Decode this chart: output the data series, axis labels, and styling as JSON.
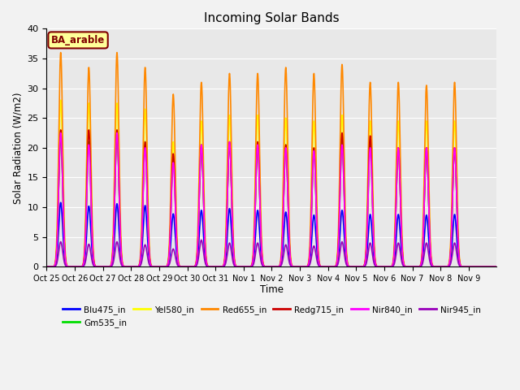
{
  "title": "Incoming Solar Bands",
  "xlabel": "Time",
  "ylabel": "Solar Radiation (W/m2)",
  "annotation": "BA_arable",
  "ylim": [
    0,
    40
  ],
  "series": {
    "Blu475_in": {
      "color": "#0000ff",
      "lw": 1.2
    },
    "Gm535_in": {
      "color": "#00dd00",
      "lw": 1.2
    },
    "Yel580_in": {
      "color": "#ffff00",
      "lw": 1.2
    },
    "Red655_in": {
      "color": "#ff8800",
      "lw": 1.2
    },
    "Redg715_in": {
      "color": "#cc0000",
      "lw": 1.2
    },
    "Nir840_in": {
      "color": "#ff00ff",
      "lw": 1.2
    },
    "Nir945_in": {
      "color": "#9900bb",
      "lw": 1.2
    }
  },
  "legend_order": [
    "Blu475_in",
    "Gm535_in",
    "Yel580_in",
    "Red655_in",
    "Redg715_in",
    "Nir840_in",
    "Nir945_in"
  ],
  "xtick_labels": [
    "Oct 25",
    "Oct 26",
    "Oct 27",
    "Oct 28",
    "Oct 29",
    "Oct 30",
    "Oct 31",
    "Nov 1",
    "Nov 2",
    "Nov 3",
    "Nov 4",
    "Nov 5",
    "Nov 6",
    "Nov 7",
    "Nov 8",
    "Nov 9"
  ],
  "n_days": 16,
  "peaks": {
    "Blu475_in": [
      10.8,
      10.2,
      10.6,
      10.3,
      8.9,
      9.5,
      9.8,
      9.5,
      9.2,
      8.7,
      9.5,
      8.8,
      8.8,
      8.7,
      8.8,
      0
    ],
    "Gm535_in": [
      22.0,
      21.0,
      22.5,
      21.0,
      18.5,
      20.5,
      21.0,
      21.0,
      20.5,
      19.5,
      21.0,
      20.5,
      20.0,
      20.0,
      20.0,
      0
    ],
    "Yel580_in": [
      28.0,
      27.5,
      27.5,
      26.5,
      21.0,
      24.5,
      25.5,
      25.5,
      25.0,
      24.5,
      25.5,
      24.5,
      24.5,
      24.5,
      24.5,
      0
    ],
    "Red655_in": [
      36.0,
      33.5,
      36.0,
      33.5,
      29.0,
      31.0,
      32.5,
      32.5,
      33.5,
      32.5,
      34.0,
      31.0,
      31.0,
      30.5,
      31.0,
      0
    ],
    "Redg715_in": [
      23.0,
      23.0,
      23.0,
      21.0,
      19.0,
      20.5,
      21.0,
      21.0,
      20.5,
      20.0,
      22.5,
      22.0,
      20.0,
      20.0,
      20.0,
      0
    ],
    "Nir840_in": [
      22.5,
      20.5,
      22.5,
      20.0,
      17.5,
      20.5,
      21.0,
      20.5,
      20.0,
      19.5,
      20.5,
      20.0,
      20.0,
      20.0,
      20.0,
      0
    ],
    "Nir945_in": [
      4.2,
      3.8,
      4.2,
      3.7,
      3.0,
      4.5,
      4.0,
      4.0,
      3.7,
      3.5,
      4.2,
      4.0,
      4.0,
      4.0,
      4.0,
      0
    ]
  },
  "background_color": "#e8e8e8",
  "grid_color": "#ffffff",
  "annotation_bg": "#ffff99",
  "annotation_fg": "#800000"
}
